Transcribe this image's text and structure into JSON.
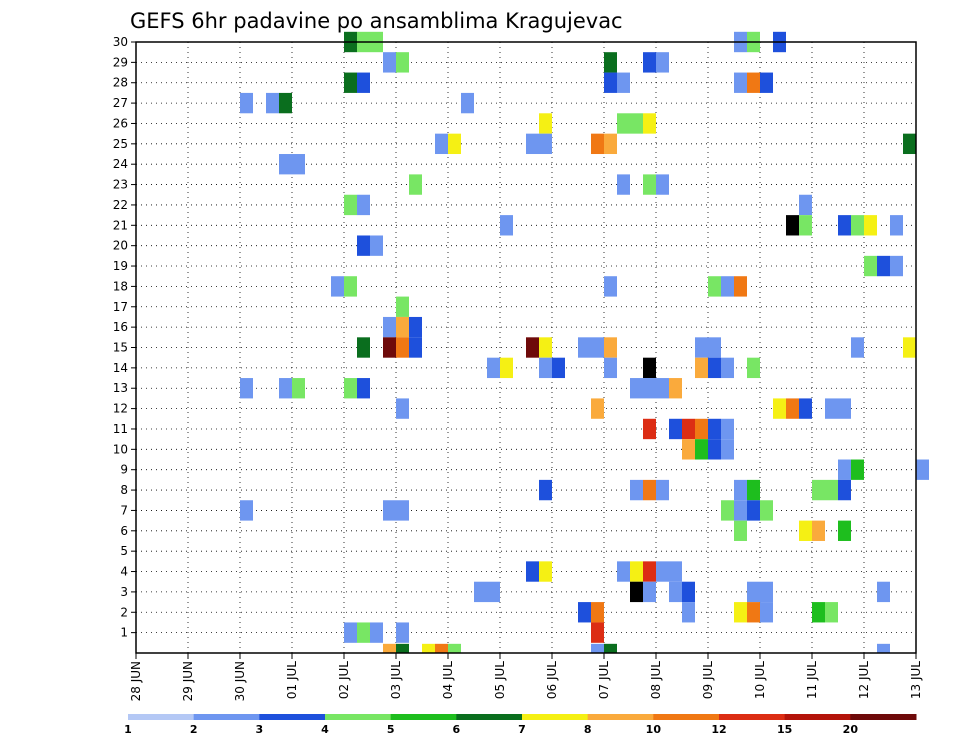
{
  "chart_data": {
    "type": "heatmap",
    "title": "GEFS 6hr padavine po ansamblima Kragujevac",
    "x_tick_labels": [
      "28 JUN",
      "29 JUN",
      "30 JUN",
      "01 JUL",
      "02 JUL",
      "03 JUL",
      "04 JUL",
      "05 JUL",
      "06 JUL",
      "07 JUL",
      "08 JUL",
      "09 JUL",
      "10 JUL",
      "11 JUL",
      "12 JUL",
      "13 JUL"
    ],
    "x_range_days": [
      0,
      15
    ],
    "y_range": [
      0,
      30
    ],
    "y_tick_labels": [
      "1",
      "2",
      "3",
      "4",
      "5",
      "6",
      "7",
      "8",
      "9",
      "10",
      "11",
      "12",
      "13",
      "14",
      "15",
      "16",
      "17",
      "18",
      "19",
      "20",
      "21",
      "22",
      "23",
      "24",
      "25",
      "26",
      "27",
      "28",
      "29",
      "30"
    ],
    "grid": "dotted",
    "colorbar": {
      "labels": [
        "1",
        "2",
        "3",
        "4",
        "5",
        "6",
        "7",
        "8",
        "10",
        "12",
        "15",
        "20"
      ],
      "colors": [
        "#b4c8f5",
        "#6e96f0",
        "#1e50dc",
        "#78e664",
        "#1ebe1e",
        "#0a6e1e",
        "#f5f014",
        "#faaa3c",
        "#f07814",
        "#dc2d14",
        "#b4140a",
        "#6e0a0a"
      ]
    },
    "cells": [
      [
        30,
        4.0,
        5
      ],
      [
        30,
        4.25,
        3
      ],
      [
        30,
        4.5,
        3
      ],
      [
        30,
        11.5,
        1
      ],
      [
        30,
        11.75,
        3
      ],
      [
        30,
        12.25,
        2
      ],
      [
        29,
        4.75,
        1
      ],
      [
        29,
        5.0,
        3
      ],
      [
        29,
        9.0,
        5
      ],
      [
        29,
        9.75,
        2
      ],
      [
        29,
        10.0,
        1
      ],
      [
        28,
        4.0,
        5
      ],
      [
        28,
        4.25,
        2
      ],
      [
        28,
        9.0,
        2
      ],
      [
        28,
        9.25,
        1
      ],
      [
        28,
        11.5,
        1
      ],
      [
        28,
        11.75,
        8
      ],
      [
        28,
        12.0,
        2
      ],
      [
        27,
        2.0,
        1
      ],
      [
        27,
        2.5,
        1
      ],
      [
        27,
        2.75,
        5
      ],
      [
        27,
        6.25,
        1
      ],
      [
        26,
        7.75,
        6
      ],
      [
        26,
        9.25,
        3
      ],
      [
        26,
        9.5,
        3
      ],
      [
        26,
        9.75,
        6
      ],
      [
        25,
        5.75,
        1
      ],
      [
        25,
        6.0,
        6
      ],
      [
        25,
        7.5,
        1
      ],
      [
        25,
        7.75,
        1
      ],
      [
        25,
        8.75,
        8
      ],
      [
        25,
        9.0,
        7
      ],
      [
        25,
        14.75,
        5
      ],
      [
        24,
        2.75,
        1
      ],
      [
        24,
        3.0,
        1
      ],
      [
        23,
        5.25,
        3
      ],
      [
        23,
        9.25,
        1
      ],
      [
        23,
        9.75,
        3
      ],
      [
        23,
        10.0,
        1
      ],
      [
        22,
        4.0,
        3
      ],
      [
        22,
        4.25,
        1
      ],
      [
        22,
        12.75,
        1
      ],
      [
        21,
        7.0,
        1
      ],
      [
        21,
        12.5,
        12
      ],
      [
        21,
        12.75,
        3
      ],
      [
        21,
        13.5,
        2
      ],
      [
        21,
        13.75,
        3
      ],
      [
        21,
        14.0,
        6
      ],
      [
        21,
        14.5,
        1
      ],
      [
        20,
        4.25,
        2
      ],
      [
        20,
        4.5,
        1
      ],
      [
        19,
        14.0,
        3
      ],
      [
        19,
        14.25,
        2
      ],
      [
        19,
        14.5,
        1
      ],
      [
        18,
        3.75,
        1
      ],
      [
        18,
        4.0,
        3
      ],
      [
        18,
        9.0,
        1
      ],
      [
        18,
        11.0,
        3
      ],
      [
        18,
        11.25,
        1
      ],
      [
        18,
        11.5,
        8
      ],
      [
        17,
        5.0,
        3
      ],
      [
        16,
        4.75,
        1
      ],
      [
        16,
        5.0,
        7
      ],
      [
        16,
        5.25,
        2
      ],
      [
        15,
        4.25,
        5
      ],
      [
        15,
        4.75,
        11
      ],
      [
        15,
        5.0,
        8
      ],
      [
        15,
        5.25,
        2
      ],
      [
        15,
        7.5,
        11
      ],
      [
        15,
        7.75,
        6
      ],
      [
        15,
        8.5,
        1
      ],
      [
        15,
        8.75,
        1
      ],
      [
        15,
        9.0,
        7
      ],
      [
        15,
        10.75,
        1
      ],
      [
        15,
        11.0,
        1
      ],
      [
        15,
        13.75,
        1
      ],
      [
        15,
        14.75,
        6
      ],
      [
        14,
        6.75,
        1
      ],
      [
        14,
        7.0,
        6
      ],
      [
        14,
        7.75,
        1
      ],
      [
        14,
        8.0,
        2
      ],
      [
        14,
        9.0,
        1
      ],
      [
        14,
        9.75,
        12
      ],
      [
        14,
        10.75,
        7
      ],
      [
        14,
        11.0,
        2
      ],
      [
        14,
        11.25,
        1
      ],
      [
        14,
        11.75,
        3
      ],
      [
        13,
        2.0,
        1
      ],
      [
        13,
        2.75,
        1
      ],
      [
        13,
        3.0,
        3
      ],
      [
        13,
        4.0,
        3
      ],
      [
        13,
        4.25,
        2
      ],
      [
        13,
        9.5,
        1
      ],
      [
        13,
        9.75,
        1
      ],
      [
        13,
        10.0,
        1
      ],
      [
        13,
        10.25,
        7
      ],
      [
        12,
        5.0,
        1
      ],
      [
        12,
        8.75,
        7
      ],
      [
        12,
        12.25,
        6
      ],
      [
        12,
        12.5,
        8
      ],
      [
        12,
        12.75,
        2
      ],
      [
        12,
        13.25,
        1
      ],
      [
        12,
        13.5,
        1
      ],
      [
        11,
        9.75,
        9
      ],
      [
        11,
        10.25,
        2
      ],
      [
        11,
        10.5,
        9
      ],
      [
        11,
        10.75,
        8
      ],
      [
        11,
        11.0,
        2
      ],
      [
        11,
        11.25,
        1
      ],
      [
        10,
        10.5,
        7
      ],
      [
        10,
        10.75,
        4
      ],
      [
        10,
        11.0,
        2
      ],
      [
        10,
        11.25,
        1
      ],
      [
        9,
        13.5,
        1
      ],
      [
        9,
        13.75,
        4
      ],
      [
        9,
        15.0,
        1
      ],
      [
        8,
        7.75,
        2
      ],
      [
        8,
        9.5,
        1
      ],
      [
        8,
        9.75,
        8
      ],
      [
        8,
        10.0,
        1
      ],
      [
        8,
        11.5,
        1
      ],
      [
        8,
        11.75,
        4
      ],
      [
        8,
        13.0,
        3
      ],
      [
        8,
        13.25,
        3
      ],
      [
        8,
        13.5,
        2
      ],
      [
        7,
        2.0,
        1
      ],
      [
        7,
        4.75,
        1
      ],
      [
        7,
        5.0,
        1
      ],
      [
        7,
        11.25,
        3
      ],
      [
        7,
        11.5,
        1
      ],
      [
        7,
        11.75,
        2
      ],
      [
        7,
        12.0,
        3
      ],
      [
        6,
        11.5,
        3
      ],
      [
        6,
        12.75,
        6
      ],
      [
        6,
        13.0,
        7
      ],
      [
        6,
        13.5,
        4
      ],
      [
        4,
        7.5,
        2
      ],
      [
        4,
        7.75,
        6
      ],
      [
        4,
        9.25,
        1
      ],
      [
        4,
        9.5,
        6
      ],
      [
        4,
        9.75,
        9
      ],
      [
        4,
        10.0,
        1
      ],
      [
        4,
        10.25,
        1
      ],
      [
        3,
        6.5,
        1
      ],
      [
        3,
        6.75,
        1
      ],
      [
        3,
        9.5,
        12
      ],
      [
        3,
        9.75,
        1
      ],
      [
        3,
        10.25,
        1
      ],
      [
        3,
        10.5,
        2
      ],
      [
        3,
        11.75,
        1
      ],
      [
        3,
        12.0,
        1
      ],
      [
        3,
        14.25,
        1
      ],
      [
        2,
        8.5,
        2
      ],
      [
        2,
        8.75,
        8
      ],
      [
        2,
        10.5,
        1
      ],
      [
        2,
        11.5,
        6
      ],
      [
        2,
        11.75,
        8
      ],
      [
        2,
        12.0,
        1
      ],
      [
        2,
        13.0,
        4
      ],
      [
        2,
        13.25,
        3
      ],
      [
        1,
        4.0,
        1
      ],
      [
        1,
        4.25,
        3
      ],
      [
        1,
        4.5,
        1
      ],
      [
        1,
        5.0,
        1
      ],
      [
        1,
        8.75,
        9
      ],
      [
        0,
        4.75,
        7
      ],
      [
        0,
        5.0,
        5
      ],
      [
        0,
        5.5,
        6
      ],
      [
        0,
        5.75,
        8
      ],
      [
        0,
        6.0,
        3
      ],
      [
        0,
        8.75,
        1
      ],
      [
        0,
        9.0,
        5
      ],
      [
        0,
        14.25,
        1
      ]
    ]
  }
}
